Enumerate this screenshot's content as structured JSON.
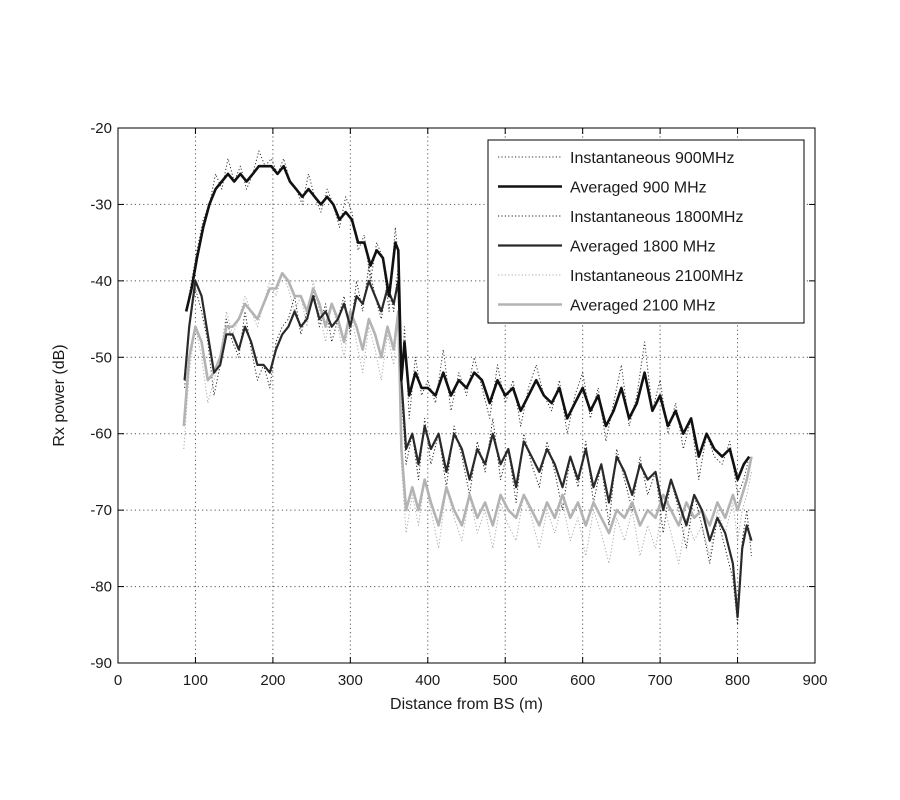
{
  "chart_data": {
    "type": "line",
    "title": "",
    "xlabel": "Distance from BS (m)",
    "ylabel": "Rx power (dB)",
    "xlim": [
      0,
      900
    ],
    "ylim": [
      -90,
      -20
    ],
    "xticks": [
      0,
      100,
      200,
      300,
      400,
      500,
      600,
      700,
      800,
      900
    ],
    "yticks": [
      -20,
      -30,
      -40,
      -50,
      -60,
      -70,
      -80,
      -90
    ],
    "grid": true,
    "legend_position": "top-right",
    "series": [
      {
        "name": "Instantaneous 900MHz",
        "style": "dotted",
        "color": "#333333",
        "x": [
          88,
          95,
          102,
          110,
          118,
          126,
          134,
          142,
          150,
          158,
          166,
          174,
          182,
          190,
          198,
          206,
          214,
          222,
          230,
          238,
          246,
          254,
          262,
          270,
          278,
          286,
          294,
          302,
          310,
          318,
          326,
          334,
          342,
          350,
          358,
          362,
          366,
          370,
          376,
          384,
          392,
          400,
          410,
          420,
          430,
          440,
          450,
          460,
          470,
          480,
          490,
          500,
          510,
          520,
          530,
          540,
          550,
          560,
          570,
          580,
          590,
          600,
          610,
          620,
          630,
          640,
          650,
          660,
          670,
          680,
          690,
          700,
          710,
          720,
          730,
          740,
          750,
          760,
          770,
          780,
          790,
          800,
          808,
          815
        ],
        "y": [
          -44,
          -40,
          -36,
          -32,
          -30,
          -26,
          -28,
          -24,
          -27,
          -25,
          -28,
          -26,
          -23,
          -25,
          -24,
          -26,
          -24,
          -27,
          -28,
          -30,
          -26,
          -29,
          -31,
          -28,
          -30,
          -33,
          -29,
          -31,
          -36,
          -34,
          -40,
          -35,
          -37,
          -44,
          -33,
          -37,
          -54,
          -46,
          -58,
          -50,
          -55,
          -53,
          -56,
          -49,
          -57,
          -52,
          -55,
          -50,
          -54,
          -58,
          -51,
          -56,
          -53,
          -59,
          -54,
          -51,
          -55,
          -57,
          -53,
          -60,
          -55,
          -52,
          -58,
          -54,
          -61,
          -56,
          -51,
          -59,
          -55,
          -48,
          -57,
          -53,
          -60,
          -56,
          -62,
          -58,
          -66,
          -60,
          -63,
          -64,
          -61,
          -68,
          -66,
          -63
        ]
      },
      {
        "name": "Averaged 900 MHz",
        "style": "solid-thick",
        "color": "#111111",
        "x": [
          88,
          95,
          102,
          110,
          118,
          126,
          134,
          142,
          150,
          158,
          166,
          174,
          182,
          190,
          198,
          206,
          214,
          222,
          230,
          238,
          246,
          254,
          262,
          270,
          278,
          286,
          294,
          302,
          310,
          318,
          326,
          334,
          342,
          350,
          358,
          362,
          366,
          370,
          376,
          384,
          392,
          400,
          410,
          420,
          430,
          440,
          450,
          460,
          470,
          480,
          490,
          500,
          510,
          520,
          530,
          540,
          550,
          560,
          570,
          580,
          590,
          600,
          610,
          620,
          630,
          640,
          650,
          660,
          670,
          680,
          690,
          700,
          710,
          720,
          730,
          740,
          750,
          760,
          770,
          780,
          790,
          800,
          808,
          815
        ],
        "y": [
          -44,
          -41,
          -37,
          -33,
          -30,
          -28,
          -27,
          -26,
          -27,
          -26,
          -27,
          -26,
          -25,
          -25,
          -25,
          -26,
          -25,
          -27,
          -28,
          -29,
          -28,
          -29,
          -30,
          -29,
          -30,
          -32,
          -31,
          -32,
          -35,
          -35,
          -38,
          -36,
          -37,
          -42,
          -35,
          -36,
          -53,
          -48,
          -55,
          -52,
          -54,
          -54,
          -55,
          -52,
          -55,
          -53,
          -54,
          -52,
          -53,
          -56,
          -53,
          -55,
          -54,
          -57,
          -55,
          -53,
          -55,
          -56,
          -54,
          -58,
          -56,
          -54,
          -57,
          -55,
          -59,
          -57,
          -54,
          -58,
          -56,
          -52,
          -57,
          -55,
          -59,
          -57,
          -60,
          -58,
          -63,
          -60,
          -62,
          -63,
          -62,
          -66,
          -64,
          -63
        ]
      },
      {
        "name": "Instantaneous 1800MHz",
        "style": "dotted",
        "color": "#222222",
        "x": [
          86,
          92,
          100,
          108,
          116,
          124,
          132,
          140,
          148,
          156,
          164,
          172,
          180,
          188,
          196,
          204,
          212,
          220,
          228,
          236,
          244,
          252,
          260,
          268,
          276,
          284,
          292,
          300,
          308,
          316,
          324,
          332,
          340,
          348,
          356,
          362,
          366,
          372,
          380,
          388,
          396,
          404,
          414,
          424,
          434,
          444,
          454,
          464,
          474,
          484,
          494,
          504,
          514,
          524,
          534,
          544,
          554,
          564,
          574,
          584,
          594,
          604,
          614,
          624,
          634,
          644,
          654,
          664,
          674,
          684,
          694,
          704,
          714,
          724,
          734,
          744,
          754,
          764,
          774,
          784,
          794,
          800,
          806,
          812,
          818
        ],
        "y": [
          -54,
          -46,
          -41,
          -44,
          -48,
          -55,
          -51,
          -45,
          -48,
          -50,
          -44,
          -49,
          -53,
          -51,
          -54,
          -48,
          -46,
          -45,
          -42,
          -47,
          -44,
          -41,
          -46,
          -43,
          -48,
          -45,
          -42,
          -47,
          -40,
          -44,
          -38,
          -42,
          -45,
          -40,
          -44,
          -38,
          -55,
          -64,
          -60,
          -66,
          -58,
          -64,
          -60,
          -67,
          -59,
          -63,
          -68,
          -61,
          -65,
          -58,
          -66,
          -62,
          -69,
          -60,
          -64,
          -67,
          -61,
          -65,
          -70,
          -63,
          -67,
          -61,
          -69,
          -64,
          -72,
          -62,
          -66,
          -70,
          -63,
          -68,
          -65,
          -73,
          -66,
          -70,
          -75,
          -68,
          -72,
          -77,
          -71,
          -75,
          -79,
          -85,
          -74,
          -70,
          -76
        ]
      },
      {
        "name": "Averaged 1800 MHz",
        "style": "solid",
        "color": "#2a2a2a",
        "x": [
          86,
          92,
          100,
          108,
          116,
          124,
          132,
          140,
          148,
          156,
          164,
          172,
          180,
          188,
          196,
          204,
          212,
          220,
          228,
          236,
          244,
          252,
          260,
          268,
          276,
          284,
          292,
          300,
          308,
          316,
          324,
          332,
          340,
          348,
          356,
          362,
          366,
          372,
          380,
          388,
          396,
          404,
          414,
          424,
          434,
          444,
          454,
          464,
          474,
          484,
          494,
          504,
          514,
          524,
          534,
          544,
          554,
          564,
          574,
          584,
          594,
          604,
          614,
          624,
          634,
          644,
          654,
          664,
          674,
          684,
          694,
          704,
          714,
          724,
          734,
          744,
          754,
          764,
          774,
          784,
          794,
          800,
          806,
          812,
          818
        ],
        "y": [
          -53,
          -46,
          -40,
          -42,
          -47,
          -52,
          -51,
          -47,
          -47,
          -49,
          -46,
          -48,
          -51,
          -51,
          -52,
          -49,
          -47,
          -46,
          -44,
          -46,
          -45,
          -42,
          -45,
          -44,
          -46,
          -45,
          -43,
          -46,
          -42,
          -43,
          -40,
          -42,
          -44,
          -41,
          -43,
          -40,
          -53,
          -62,
          -60,
          -64,
          -59,
          -62,
          -60,
          -65,
          -60,
          -62,
          -66,
          -62,
          -64,
          -60,
          -64,
          -62,
          -67,
          -61,
          -63,
          -65,
          -62,
          -64,
          -67,
          -63,
          -66,
          -62,
          -67,
          -64,
          -69,
          -63,
          -65,
          -68,
          -64,
          -66,
          -65,
          -70,
          -66,
          -69,
          -72,
          -68,
          -70,
          -74,
          -71,
          -73,
          -77,
          -84,
          -75,
          -72,
          -74
        ]
      },
      {
        "name": "Instantaneous 2100MHz",
        "style": "dotted",
        "color": "#aaaaaa",
        "x": [
          85,
          92,
          100,
          108,
          116,
          124,
          132,
          140,
          148,
          156,
          164,
          172,
          180,
          188,
          196,
          204,
          212,
          220,
          228,
          236,
          244,
          252,
          260,
          268,
          276,
          284,
          292,
          300,
          308,
          316,
          324,
          332,
          340,
          348,
          356,
          362,
          366,
          372,
          380,
          388,
          396,
          404,
          414,
          424,
          434,
          444,
          454,
          464,
          474,
          484,
          494,
          504,
          514,
          524,
          534,
          544,
          554,
          564,
          574,
          584,
          594,
          604,
          614,
          624,
          634,
          644,
          654,
          664,
          674,
          684,
          694,
          704,
          714,
          724,
          734,
          744,
          754,
          764,
          774,
          784,
          794,
          800,
          806,
          812,
          818
        ],
        "y": [
          -62,
          -52,
          -46,
          -50,
          -56,
          -53,
          -50,
          -44,
          -47,
          -45,
          -42,
          -44,
          -46,
          -43,
          -40,
          -42,
          -39,
          -41,
          -44,
          -42,
          -46,
          -40,
          -44,
          -48,
          -43,
          -46,
          -50,
          -44,
          -48,
          -52,
          -46,
          -49,
          -53,
          -47,
          -51,
          -44,
          -64,
          -73,
          -68,
          -72,
          -66,
          -70,
          -75,
          -67,
          -71,
          -74,
          -68,
          -73,
          -70,
          -75,
          -69,
          -72,
          -74,
          -68,
          -71,
          -75,
          -70,
          -73,
          -69,
          -74,
          -71,
          -76,
          -70,
          -73,
          -77,
          -71,
          -74,
          -70,
          -76,
          -72,
          -75,
          -69,
          -73,
          -77,
          -71,
          -74,
          -72,
          -76,
          -70,
          -73,
          -69,
          -74,
          -70,
          -68,
          -65
        ]
      },
      {
        "name": "Averaged 2100 MHz",
        "style": "solid-thick",
        "color": "#b3b3b3",
        "x": [
          85,
          92,
          100,
          108,
          116,
          124,
          132,
          140,
          148,
          156,
          164,
          172,
          180,
          188,
          196,
          204,
          212,
          220,
          228,
          236,
          244,
          252,
          260,
          268,
          276,
          284,
          292,
          300,
          308,
          316,
          324,
          332,
          340,
          348,
          356,
          362,
          366,
          372,
          380,
          388,
          396,
          404,
          414,
          424,
          434,
          444,
          454,
          464,
          474,
          484,
          494,
          504,
          514,
          524,
          534,
          544,
          554,
          564,
          574,
          584,
          594,
          604,
          614,
          624,
          634,
          644,
          654,
          664,
          674,
          684,
          694,
          704,
          714,
          724,
          734,
          744,
          754,
          764,
          774,
          784,
          794,
          800,
          806,
          812,
          818
        ],
        "y": [
          -59,
          -50,
          -46,
          -48,
          -53,
          -52,
          -50,
          -46,
          -46,
          -45,
          -43,
          -44,
          -45,
          -43,
          -41,
          -41,
          -39,
          -40,
          -42,
          -42,
          -44,
          -41,
          -43,
          -46,
          -43,
          -45,
          -48,
          -44,
          -46,
          -49,
          -45,
          -47,
          -50,
          -46,
          -49,
          -44,
          -62,
          -70,
          -67,
          -70,
          -66,
          -69,
          -72,
          -67,
          -70,
          -72,
          -68,
          -71,
          -69,
          -72,
          -68,
          -70,
          -71,
          -68,
          -70,
          -72,
          -69,
          -71,
          -68,
          -71,
          -69,
          -72,
          -69,
          -71,
          -73,
          -70,
          -71,
          -69,
          -72,
          -70,
          -71,
          -68,
          -70,
          -72,
          -69,
          -71,
          -70,
          -72,
          -69,
          -71,
          -68,
          -70,
          -68,
          -66,
          -63
        ]
      }
    ]
  }
}
